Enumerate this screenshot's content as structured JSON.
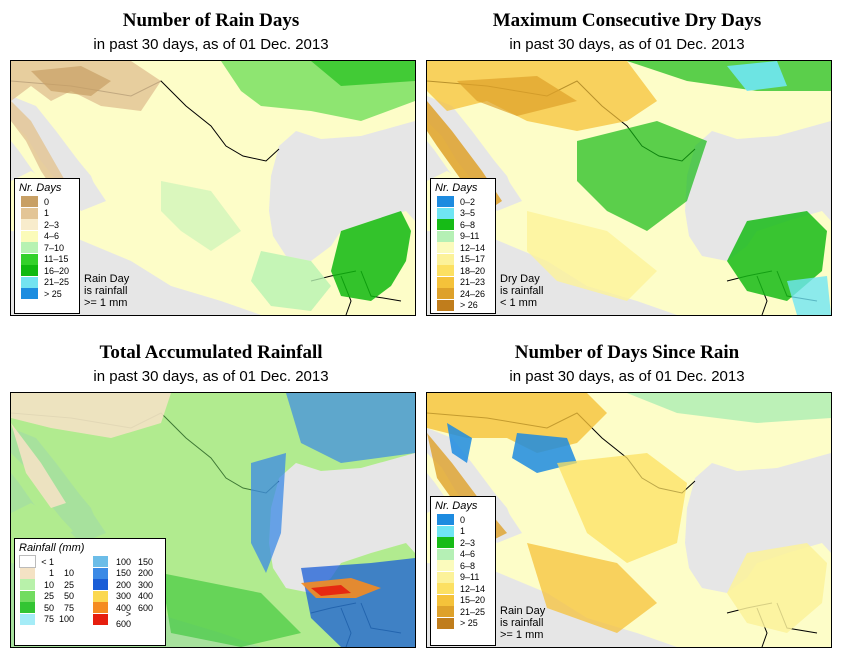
{
  "colors": {
    "land": "#fdfdc8",
    "water": "#e6e6e6",
    "border": "#000000"
  },
  "panels": [
    {
      "id": "rain_days",
      "title": "Number of Rain Days",
      "subtitle": "in past 30 days, as of  01 Dec. 2013",
      "legend_title": "Nr. Days",
      "legend": [
        {
          "label": "0",
          "color": "#c8a065"
        },
        {
          "label": "1",
          "color": "#e3c596"
        },
        {
          "label": "2–3",
          "color": "#f8eccc"
        },
        {
          "label": "4–6",
          "color": "#fbfbb9"
        },
        {
          "label": "7–10",
          "color": "#b7f2b2"
        },
        {
          "label": "11–15",
          "color": "#33d12a"
        },
        {
          "label": "16–20",
          "color": "#0fb90f"
        },
        {
          "label": "21–25",
          "color": "#73e3f0"
        },
        {
          "label": "> 25",
          "color": "#1c8de0"
        }
      ],
      "note": [
        "Rain Day",
        "is rainfall",
        ">= 1 mm"
      ]
    },
    {
      "id": "dry_days",
      "title": "Maximum Consecutive Dry Days",
      "subtitle": "in past 30 days, as of  01 Dec. 2013",
      "legend_title": "Nr. Days",
      "legend": [
        {
          "label": "0–2",
          "color": "#1d8be0"
        },
        {
          "label": "3–5",
          "color": "#6fe5f4"
        },
        {
          "label": "6–8",
          "color": "#16bb16"
        },
        {
          "label": "9–11",
          "color": "#b5f0b5"
        },
        {
          "label": "12–14",
          "color": "#fbfbbd"
        },
        {
          "label": "15–17",
          "color": "#fcf29a"
        },
        {
          "label": "18–20",
          "color": "#fce062"
        },
        {
          "label": "21–23",
          "color": "#f5c23a"
        },
        {
          "label": "24–26",
          "color": "#dea12a"
        },
        {
          "label": "> 26",
          "color": "#c07d1c"
        }
      ],
      "note": [
        "Dry Day",
        "is rainfall",
        "< 1 mm"
      ]
    },
    {
      "id": "rainfall",
      "title": "Total Accumulated Rainfall",
      "subtitle": "in past 30 days, as of  01 Dec. 2013",
      "legend_title": "Rainfall (mm)",
      "legend_left": [
        {
          "lo": "< 1",
          "hi": "",
          "color": "#ffffff"
        },
        {
          "lo": "1",
          "hi": "10",
          "color": "#f4e2c4"
        },
        {
          "lo": "10",
          "hi": "25",
          "color": "#b8f1aa"
        },
        {
          "lo": "25",
          "hi": "50",
          "color": "#72dc60"
        },
        {
          "lo": "50",
          "hi": "75",
          "color": "#33c533"
        },
        {
          "lo": "75",
          "hi": "100",
          "color": "#a5ecf7"
        }
      ],
      "legend_right": [
        {
          "lo": "100",
          "hi": "150",
          "color": "#6cbde8"
        },
        {
          "lo": "150",
          "hi": "200",
          "color": "#3b8ae6"
        },
        {
          "lo": "200",
          "hi": "300",
          "color": "#1a5ed7"
        },
        {
          "lo": "300",
          "hi": "400",
          "color": "#fbd850"
        },
        {
          "lo": "400",
          "hi": "600",
          "color": "#f58b20"
        },
        {
          "lo": "> 600",
          "hi": "",
          "color": "#e61e0e"
        }
      ]
    },
    {
      "id": "since_rain",
      "title": "Number of Days Since Rain",
      "subtitle": "in past 30 days, as of  01 Dec. 2013",
      "legend_title": "Nr. Days",
      "legend": [
        {
          "label": "0",
          "color": "#1d8be0"
        },
        {
          "label": "1",
          "color": "#6fe5f4"
        },
        {
          "label": "2–3",
          "color": "#16bb16"
        },
        {
          "label": "4–6",
          "color": "#b5f0b5"
        },
        {
          "label": "6–8",
          "color": "#fbfbbd"
        },
        {
          "label": "9–11",
          "color": "#fcf29a"
        },
        {
          "label": "12–14",
          "color": "#fce062"
        },
        {
          "label": "15–20",
          "color": "#f5c23a"
        },
        {
          "label": "21–25",
          "color": "#dea12a"
        },
        {
          "label": "> 25",
          "color": "#c07d1c"
        }
      ],
      "note": [
        "Rain Day",
        "is rainfall",
        ">= 1 mm"
      ]
    }
  ]
}
